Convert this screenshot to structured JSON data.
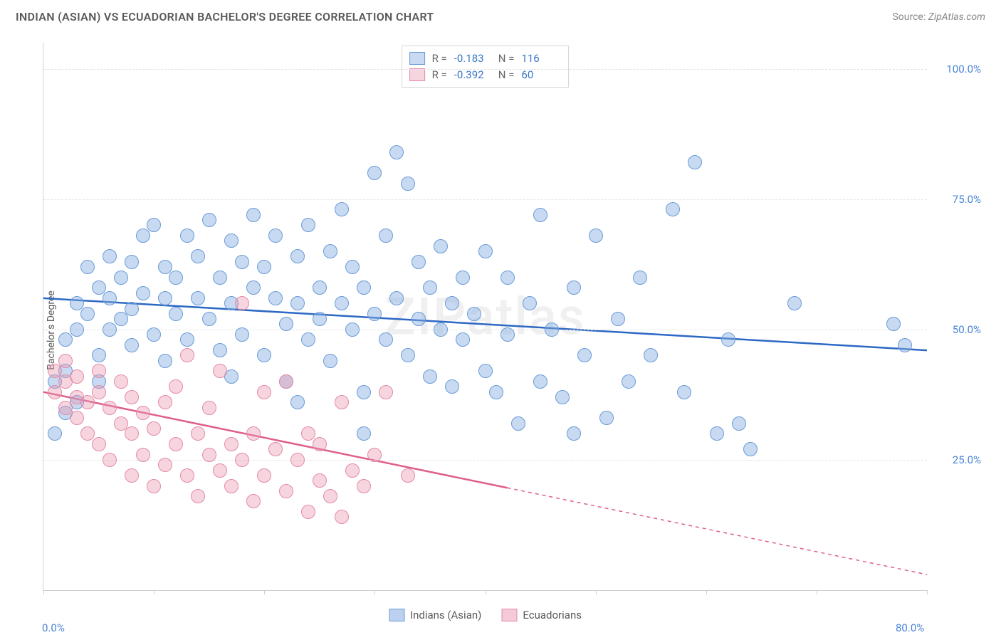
{
  "header": {
    "title": "INDIAN (ASIAN) VS ECUADORIAN BACHELOR'S DEGREE CORRELATION CHART",
    "source_prefix": "Source: ",
    "source_name": "ZipAtlas.com"
  },
  "chart": {
    "type": "scatter",
    "ylabel": "Bachelor's Degree",
    "watermark": "ZIPatlas",
    "background_color": "#ffffff",
    "grid_color": "#e4e4e4",
    "axis_color": "#cfcfcf",
    "tick_label_color": "#4a84d6",
    "xlim": [
      0,
      80
    ],
    "ylim": [
      0,
      105
    ],
    "xticks": [
      {
        "v": 0,
        "label": "0.0%"
      },
      {
        "v": 10
      },
      {
        "v": 20
      },
      {
        "v": 30
      },
      {
        "v": 40
      },
      {
        "v": 50
      },
      {
        "v": 60
      },
      {
        "v": 70
      },
      {
        "v": 80,
        "label": "80.0%"
      }
    ],
    "yticks": [
      {
        "v": 25,
        "label": "25.0%"
      },
      {
        "v": 50,
        "label": "50.0%"
      },
      {
        "v": 75,
        "label": "75.0%"
      },
      {
        "v": 100,
        "label": "100.0%"
      }
    ],
    "series": [
      {
        "id": "indians",
        "name": "Indians (Asian)",
        "fill": "rgba(132,172,225,0.45)",
        "stroke": "#6a9bd8",
        "line_color": "#2d68c4",
        "marker_r": 10,
        "R": "-0.183",
        "N": "116",
        "trend": {
          "x0": 0,
          "y0": 56,
          "x1": 80,
          "y1": 46,
          "solid_to_x": 80
        },
        "points": [
          [
            1,
            30
          ],
          [
            1,
            40
          ],
          [
            2,
            42
          ],
          [
            2,
            48
          ],
          [
            2,
            34
          ],
          [
            3,
            50
          ],
          [
            3,
            55
          ],
          [
            3,
            36
          ],
          [
            4,
            53
          ],
          [
            4,
            62
          ],
          [
            5,
            45
          ],
          [
            5,
            58
          ],
          [
            6,
            56
          ],
          [
            6,
            50
          ],
          [
            6,
            64
          ],
          [
            7,
            60
          ],
          [
            7,
            52
          ],
          [
            8,
            54
          ],
          [
            8,
            63
          ],
          [
            8,
            47
          ],
          [
            9,
            57
          ],
          [
            9,
            68
          ],
          [
            10,
            49
          ],
          [
            10,
            70
          ],
          [
            11,
            56
          ],
          [
            11,
            62
          ],
          [
            12,
            60
          ],
          [
            12,
            53
          ],
          [
            13,
            48
          ],
          [
            13,
            68
          ],
          [
            14,
            64
          ],
          [
            14,
            56
          ],
          [
            15,
            71
          ],
          [
            15,
            52
          ],
          [
            16,
            60
          ],
          [
            16,
            46
          ],
          [
            17,
            67
          ],
          [
            17,
            55
          ],
          [
            18,
            63
          ],
          [
            18,
            49
          ],
          [
            19,
            58
          ],
          [
            19,
            72
          ],
          [
            20,
            45
          ],
          [
            20,
            62
          ],
          [
            21,
            56
          ],
          [
            21,
            68
          ],
          [
            22,
            51
          ],
          [
            22,
            40
          ],
          [
            23,
            64
          ],
          [
            23,
            55
          ],
          [
            24,
            70
          ],
          [
            24,
            48
          ],
          [
            25,
            58
          ],
          [
            25,
            52
          ],
          [
            26,
            65
          ],
          [
            26,
            44
          ],
          [
            27,
            73
          ],
          [
            27,
            55
          ],
          [
            28,
            50
          ],
          [
            28,
            62
          ],
          [
            29,
            38
          ],
          [
            29,
            58
          ],
          [
            30,
            80
          ],
          [
            30,
            53
          ],
          [
            31,
            48
          ],
          [
            31,
            68
          ],
          [
            32,
            84
          ],
          [
            32,
            56
          ],
          [
            33,
            78
          ],
          [
            33,
            45
          ],
          [
            34,
            63
          ],
          [
            34,
            52
          ],
          [
            35,
            41
          ],
          [
            35,
            58
          ],
          [
            36,
            50
          ],
          [
            36,
            66
          ],
          [
            37,
            39
          ],
          [
            37,
            55
          ],
          [
            38,
            48
          ],
          [
            38,
            60
          ],
          [
            39,
            53
          ],
          [
            40,
            42
          ],
          [
            40,
            65
          ],
          [
            41,
            38
          ],
          [
            42,
            49
          ],
          [
            42,
            60
          ],
          [
            43,
            32
          ],
          [
            44,
            55
          ],
          [
            45,
            40
          ],
          [
            45,
            72
          ],
          [
            46,
            50
          ],
          [
            47,
            37
          ],
          [
            48,
            58
          ],
          [
            48,
            30
          ],
          [
            49,
            45
          ],
          [
            50,
            68
          ],
          [
            51,
            33
          ],
          [
            52,
            52
          ],
          [
            53,
            40
          ],
          [
            54,
            60
          ],
          [
            55,
            45
          ],
          [
            57,
            73
          ],
          [
            58,
            38
          ],
          [
            59,
            82
          ],
          [
            61,
            30
          ],
          [
            62,
            48
          ],
          [
            63,
            32
          ],
          [
            64,
            27
          ],
          [
            68,
            55
          ],
          [
            77,
            51
          ],
          [
            78,
            47
          ],
          [
            5,
            40
          ],
          [
            11,
            44
          ],
          [
            17,
            41
          ],
          [
            23,
            36
          ],
          [
            29,
            30
          ]
        ]
      },
      {
        "id": "ecuadorians",
        "name": "Ecuadorians",
        "fill": "rgba(235,150,175,0.40)",
        "stroke": "#e48aa8",
        "line_color": "#de5f89",
        "marker_r": 10,
        "R": "-0.392",
        "N": "60",
        "trend": {
          "x0": 0,
          "y0": 38,
          "x1": 80,
          "y1": 3,
          "solid_to_x": 42
        },
        "points": [
          [
            1,
            42
          ],
          [
            1,
            38
          ],
          [
            2,
            40
          ],
          [
            2,
            35
          ],
          [
            2,
            44
          ],
          [
            3,
            37
          ],
          [
            3,
            33
          ],
          [
            3,
            41
          ],
          [
            4,
            36
          ],
          [
            4,
            30
          ],
          [
            5,
            38
          ],
          [
            5,
            28
          ],
          [
            5,
            42
          ],
          [
            6,
            35
          ],
          [
            6,
            25
          ],
          [
            7,
            32
          ],
          [
            7,
            40
          ],
          [
            8,
            30
          ],
          [
            8,
            22
          ],
          [
            8,
            37
          ],
          [
            9,
            34
          ],
          [
            9,
            26
          ],
          [
            10,
            31
          ],
          [
            10,
            20
          ],
          [
            11,
            36
          ],
          [
            11,
            24
          ],
          [
            12,
            28
          ],
          [
            12,
            39
          ],
          [
            13,
            45
          ],
          [
            13,
            22
          ],
          [
            14,
            30
          ],
          [
            14,
            18
          ],
          [
            15,
            26
          ],
          [
            15,
            35
          ],
          [
            16,
            23
          ],
          [
            16,
            42
          ],
          [
            17,
            28
          ],
          [
            17,
            20
          ],
          [
            18,
            55
          ],
          [
            18,
            25
          ],
          [
            19,
            30
          ],
          [
            19,
            17
          ],
          [
            20,
            38
          ],
          [
            20,
            22
          ],
          [
            21,
            27
          ],
          [
            22,
            40
          ],
          [
            22,
            19
          ],
          [
            23,
            25
          ],
          [
            24,
            30
          ],
          [
            24,
            15
          ],
          [
            25,
            28
          ],
          [
            25,
            21
          ],
          [
            26,
            18
          ],
          [
            27,
            36
          ],
          [
            27,
            14
          ],
          [
            28,
            23
          ],
          [
            29,
            20
          ],
          [
            30,
            26
          ],
          [
            31,
            38
          ],
          [
            33,
            22
          ]
        ]
      }
    ]
  },
  "legend": {
    "items": [
      {
        "label": "Indians (Asian)",
        "fill": "rgba(132,172,225,0.55)",
        "stroke": "#6a9bd8"
      },
      {
        "label": "Ecuadorians",
        "fill": "rgba(235,150,175,0.50)",
        "stroke": "#e48aa8"
      }
    ]
  }
}
